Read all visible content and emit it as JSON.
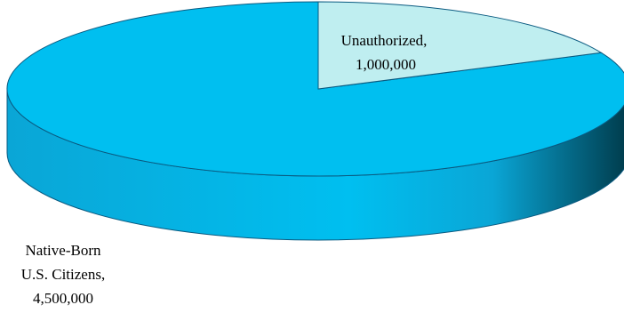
{
  "chart_data": {
    "type": "pie",
    "title": "",
    "style": "3d-tilted",
    "slices": [
      {
        "label": "Unauthorized,",
        "value_label": "1,000,000",
        "value": 1000000,
        "color": "#bfeef0",
        "side_color": "#8fd4dc"
      },
      {
        "label": "Native-Born",
        "label_line2": "U.S. Citizens,",
        "value_label": "4,500,000",
        "value": 4500000,
        "color": "#00bff0",
        "side_color": "#0aa6d6"
      }
    ],
    "side_shadow_color": "#003a4a",
    "slice_outline_color": "#0a5a80"
  }
}
